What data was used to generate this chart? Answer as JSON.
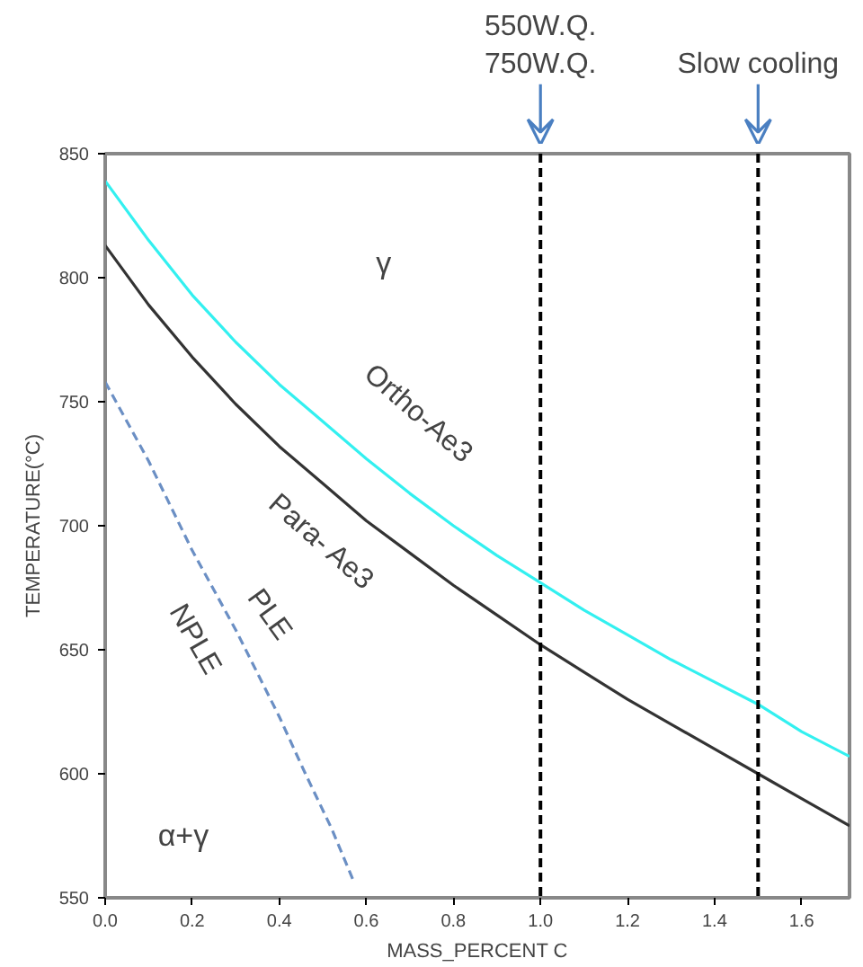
{
  "chart_data": {
    "type": "line",
    "xlabel": "MASS_PERCENT C",
    "ylabel": "TEMPERATURE(°C)",
    "x": [
      0,
      0.1,
      0.2,
      0.3,
      0.4,
      0.5,
      0.6,
      0.7,
      0.8,
      0.9,
      1.0,
      1.1,
      1.2,
      1.3,
      1.4,
      1.5,
      1.6,
      1.71
    ],
    "series": [
      {
        "color": "#33f0f0",
        "values": [
          839,
          815,
          793,
          774,
          757,
          742,
          727,
          713,
          700,
          688,
          677,
          666,
          656,
          646,
          637,
          628,
          617,
          607
        ]
      },
      {
        "color": "#333333",
        "values": [
          813,
          789,
          768,
          749,
          732,
          717,
          702,
          689,
          676,
          664,
          652,
          641,
          630,
          620,
          610,
          600,
          590,
          579
        ]
      },
      {
        "color": "#6b8fc4",
        "line_style": "dashed",
        "x": [
          0,
          0.1,
          0.2,
          0.3,
          0.4,
          0.46,
          0.52,
          0.57
        ],
        "values": [
          758,
          726,
          690,
          658,
          623,
          600,
          578,
          557
        ]
      }
    ],
    "annotations": [
      "γ",
      "Ortho-Ae3",
      "Para- Ae3",
      "PLE",
      "NPLE",
      "α+γ"
    ],
    "ref_lines": [
      {
        "axis": "x",
        "value": 1.0,
        "label": "550W.Q.\n750W.Q.",
        "color": "#000000",
        "line_style": "dashed"
      },
      {
        "axis": "x",
        "value": 1.5,
        "label": "Slow cooling",
        "color": "#000000",
        "line_style": "dashed"
      }
    ],
    "xlim": [
      0,
      1.71
    ],
    "ylim": [
      550,
      850
    ],
    "xticks": [
      {
        "value": 0,
        "label": "0.0"
      },
      0.2,
      0.4,
      0.6,
      0.8,
      {
        "value": 1.0,
        "label": "1.0"
      },
      1.2,
      1.4,
      1.6
    ],
    "yticks": [
      550,
      600,
      650,
      700,
      750,
      800,
      850
    ],
    "grid": false
  }
}
